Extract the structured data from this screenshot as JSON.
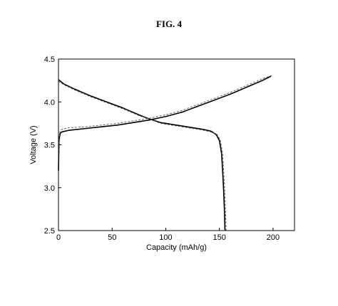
{
  "figure": {
    "title": "FIG. 4"
  },
  "chart_data": {
    "type": "line",
    "title": "",
    "xlabel": "Capacity (mAh/g)",
    "ylabel": "Voltage (V)",
    "xlim": [
      0,
      220
    ],
    "ylim": [
      2.5,
      4.5
    ],
    "xticks": [
      0,
      50,
      100,
      150,
      200
    ],
    "yticks": [
      2.5,
      3.0,
      3.5,
      4.0,
      4.5
    ],
    "xtick_labels": [
      "0",
      "50",
      "100",
      "150",
      "200"
    ],
    "ytick_labels": [
      "2.5",
      "3.0",
      "3.5",
      "4.0",
      "4.5"
    ],
    "grid": false,
    "legend": "none",
    "series": [
      {
        "color": "#000000",
        "style": "solid",
        "points": [
          [
            0,
            3.2
          ],
          [
            0.5,
            3.55
          ],
          [
            1.5,
            3.63
          ],
          [
            3,
            3.65
          ],
          [
            10,
            3.67
          ],
          [
            25,
            3.69
          ],
          [
            40,
            3.71
          ],
          [
            55,
            3.73
          ],
          [
            70,
            3.76
          ],
          [
            85,
            3.79
          ],
          [
            100,
            3.83
          ],
          [
            115,
            3.88
          ],
          [
            130,
            3.95
          ],
          [
            145,
            4.02
          ],
          [
            160,
            4.09
          ],
          [
            175,
            4.17
          ],
          [
            190,
            4.25
          ],
          [
            198,
            4.3
          ]
        ]
      },
      {
        "color": "#000000",
        "style": "solid",
        "points": [
          [
            0,
            4.26
          ],
          [
            5,
            4.21
          ],
          [
            15,
            4.15
          ],
          [
            30,
            4.07
          ],
          [
            45,
            4.0
          ],
          [
            60,
            3.93
          ],
          [
            75,
            3.85
          ],
          [
            85,
            3.8
          ],
          [
            95,
            3.76
          ],
          [
            110,
            3.73
          ],
          [
            125,
            3.7
          ],
          [
            135,
            3.68
          ],
          [
            142,
            3.66
          ],
          [
            147,
            3.62
          ],
          [
            150,
            3.55
          ],
          [
            152,
            3.4
          ],
          [
            153,
            3.2
          ],
          [
            154,
            2.95
          ],
          [
            154.8,
            2.7
          ],
          [
            155.2,
            2.5
          ]
        ]
      },
      {
        "color": "#555555",
        "style": "dashed",
        "points": [
          [
            0,
            3.22
          ],
          [
            0.5,
            3.58
          ],
          [
            1.5,
            3.66
          ],
          [
            3,
            3.68
          ],
          [
            10,
            3.7
          ],
          [
            25,
            3.71
          ],
          [
            40,
            3.73
          ],
          [
            55,
            3.75
          ],
          [
            70,
            3.78
          ],
          [
            85,
            3.81
          ],
          [
            100,
            3.85
          ],
          [
            115,
            3.9
          ],
          [
            130,
            3.97
          ],
          [
            145,
            4.04
          ],
          [
            160,
            4.11
          ],
          [
            175,
            4.19
          ],
          [
            190,
            4.27
          ],
          [
            199,
            4.31
          ]
        ]
      },
      {
        "color": "#555555",
        "style": "dashed",
        "points": [
          [
            0,
            4.24
          ],
          [
            5,
            4.2
          ],
          [
            15,
            4.14
          ],
          [
            30,
            4.06
          ],
          [
            45,
            3.99
          ],
          [
            60,
            3.92
          ],
          [
            75,
            3.84
          ],
          [
            85,
            3.8
          ],
          [
            95,
            3.75
          ],
          [
            110,
            3.72
          ],
          [
            125,
            3.69
          ],
          [
            135,
            3.67
          ],
          [
            142,
            3.65
          ],
          [
            148,
            3.62
          ],
          [
            151,
            3.55
          ],
          [
            153,
            3.4
          ],
          [
            154,
            3.2
          ],
          [
            155,
            2.95
          ],
          [
            155.8,
            2.7
          ],
          [
            156.3,
            2.5
          ]
        ]
      }
    ]
  }
}
